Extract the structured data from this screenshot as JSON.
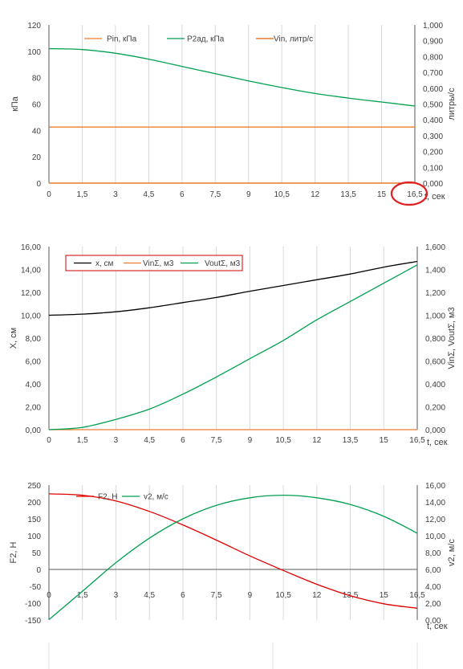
{
  "chart_data": [
    {
      "type": "line",
      "x": [
        0,
        1.5,
        3,
        4.5,
        6,
        7.5,
        9,
        10.5,
        12,
        13.5,
        15,
        16.5
      ],
      "x_tick_labels": [
        "0",
        "1,5",
        "3",
        "4,5",
        "6",
        "7,5",
        "9",
        "10,5",
        "12",
        "13,5",
        "15",
        "16,5"
      ],
      "xlabel": "t, сек",
      "ylabel": "кПа",
      "ylabel_right": "литры/с",
      "ylim": [
        0,
        120
      ],
      "y_ticks": [
        0,
        20,
        40,
        60,
        80,
        100,
        120
      ],
      "y_tick_labels": [
        "0",
        "20",
        "40",
        "60",
        "80",
        "100",
        "120"
      ],
      "ylim_right": [
        0,
        1
      ],
      "y_right_ticks": [
        0,
        0.1,
        0.2,
        0.3,
        0.4,
        0.5,
        0.6,
        0.7,
        0.8,
        0.9,
        1
      ],
      "y_right_tick_labels": [
        "0,000",
        "0,100",
        "0,200",
        "0,300",
        "0,400",
        "0,500",
        "0,600",
        "0,700",
        "0,800",
        "0,900",
        "1,000"
      ],
      "grid": "vertical",
      "legend_placement": "top",
      "series": [
        {
          "name": "Pin, кПа",
          "color": "#ED7D31",
          "axis": "left",
          "values": [
            42.5,
            42.5,
            42.5,
            42.5,
            42.5,
            42.5,
            42.5,
            42.5,
            42.5,
            42.5,
            42.5,
            42.5
          ]
        },
        {
          "name": "P2ад, кПа",
          "color": "#00A050",
          "axis": "left",
          "values": [
            102,
            101.3,
            98.5,
            94,
            88.5,
            83,
            77.5,
            72.5,
            68,
            64.5,
            61.5,
            58.5
          ]
        },
        {
          "name": "Vin, литр/с",
          "color": "#E0600A",
          "axis": "right",
          "values": [
            0,
            0,
            0,
            0,
            0,
            0,
            0,
            0,
            0,
            0,
            0,
            0
          ]
        }
      ],
      "annotation": "red-circle-around-16,5"
    },
    {
      "type": "line",
      "x": [
        0,
        1.5,
        3,
        4.5,
        6,
        7.5,
        9,
        10.5,
        12,
        13.5,
        15,
        16.5
      ],
      "x_tick_labels": [
        "0",
        "1,5",
        "3",
        "4,5",
        "6",
        "7,5",
        "9",
        "10,5",
        "12",
        "13,5",
        "15",
        "16,5"
      ],
      "xlabel": "t, сек",
      "ylabel": "X, см",
      "ylabel_right": "VinΣ, VoutΣ, м3",
      "ylim": [
        0,
        16
      ],
      "y_ticks": [
        0,
        2,
        4,
        6,
        8,
        10,
        12,
        14,
        16
      ],
      "y_tick_labels": [
        "0,00",
        "2,00",
        "4,00",
        "6,00",
        "8,00",
        "10,00",
        "12,00",
        "14,00",
        "16,00"
      ],
      "ylim_right": [
        0,
        1.6
      ],
      "y_right_ticks": [
        0,
        0.2,
        0.4,
        0.6,
        0.8,
        1.0,
        1.2,
        1.4,
        1.6
      ],
      "y_right_tick_labels": [
        "0,000",
        "0,200",
        "0,400",
        "0,600",
        "0,800",
        "1,000",
        "1,200",
        "1,400",
        "1,600"
      ],
      "grid": "vertical",
      "legend_placement": "top-left",
      "series": [
        {
          "name": "x, см",
          "color": "#000000",
          "axis": "left",
          "values": [
            10.0,
            10.1,
            10.3,
            10.65,
            11.1,
            11.55,
            12.1,
            12.6,
            13.1,
            13.6,
            14.2,
            14.7
          ]
        },
        {
          "name": "VinΣ, м3",
          "color": "#ED7D31",
          "axis": "right",
          "values": [
            0,
            0,
            0,
            0,
            0,
            0,
            0,
            0,
            0,
            0,
            0,
            0
          ]
        },
        {
          "name": "VoutΣ, м3",
          "color": "#00A050",
          "axis": "right",
          "values": [
            0,
            0.02,
            0.09,
            0.18,
            0.31,
            0.46,
            0.62,
            0.78,
            0.96,
            1.12,
            1.28,
            1.44
          ]
        }
      ]
    },
    {
      "type": "line",
      "x": [
        0,
        1.5,
        3,
        4.5,
        6,
        7.5,
        9,
        10.5,
        12,
        13.5,
        15,
        16.5
      ],
      "x_tick_labels": [
        "0",
        "1,5",
        "3",
        "4,5",
        "6",
        "7,5",
        "9",
        "10,5",
        "12",
        "13,5",
        "15",
        "16,5"
      ],
      "xlabel": "t, сек",
      "ylabel": "F2, H",
      "ylabel_right": "v2, м/с",
      "ylim": [
        -150,
        250
      ],
      "y_ticks": [
        -150,
        -100,
        -50,
        0,
        50,
        100,
        150,
        200,
        250
      ],
      "y_tick_labels": [
        "-150",
        "-100",
        "-50",
        "0",
        "50",
        "100",
        "150",
        "200",
        "250"
      ],
      "ylim_right": [
        0,
        16
      ],
      "y_right_ticks": [
        0,
        2,
        4,
        6,
        8,
        10,
        12,
        14,
        16
      ],
      "y_right_tick_labels": [
        "0,00",
        "2,00",
        "4,00",
        "6,00",
        "8,00",
        "10,00",
        "12,00",
        "14,00",
        "16,00"
      ],
      "grid": "vertical",
      "legend_placement": "top",
      "series": [
        {
          "name": "F2, H",
          "color": "#E00000",
          "axis": "left",
          "values": [
            224,
            220,
            203,
            172,
            132,
            87,
            40,
            -3,
            -44,
            -78,
            -102,
            -115
          ]
        },
        {
          "name": "v2, м/с",
          "color": "#00A050",
          "axis": "right",
          "values": [
            0.05,
            3.4,
            6.8,
            9.7,
            12.0,
            13.6,
            14.5,
            14.8,
            14.5,
            13.7,
            12.3,
            10.3
          ]
        }
      ]
    }
  ]
}
